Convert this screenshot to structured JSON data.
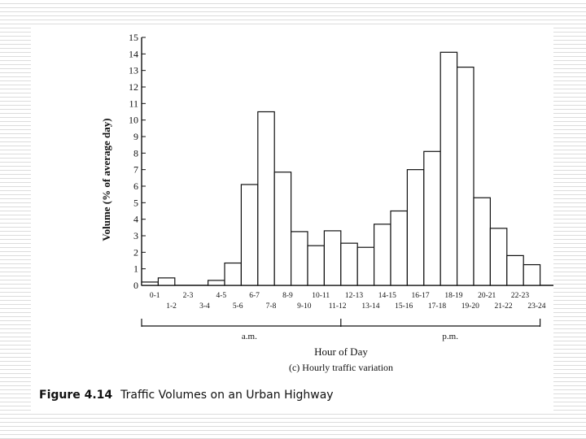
{
  "chart_data": {
    "type": "bar",
    "categories": [
      "0-1",
      "1-2",
      "2-3",
      "3-4",
      "4-5",
      "5-6",
      "6-7",
      "7-8",
      "8-9",
      "9-10",
      "10-11",
      "11-12",
      "12-13",
      "13-14",
      "14-15",
      "15-16",
      "16-17",
      "17-18",
      "18-19",
      "19-20",
      "20-21",
      "21-22",
      "22-23",
      "23-24"
    ],
    "values": [
      0.2,
      0.45,
      0,
      0,
      0.3,
      1.35,
      6.1,
      10.5,
      6.85,
      3.25,
      2.4,
      3.3,
      2.55,
      2.3,
      3.7,
      4.5,
      7.0,
      8.1,
      14.1,
      13.2,
      5.3,
      3.45,
      1.8,
      1.25
    ],
    "ylabel": "Volume (% of average day)",
    "xlabel": "Hour of Day",
    "subtitle": "(c) Hourly traffic variation",
    "ylim": [
      0,
      15
    ],
    "yticks": [
      0,
      1,
      2,
      3,
      4,
      5,
      6,
      7,
      8,
      9,
      10,
      11,
      12,
      13,
      14,
      15
    ],
    "period_labels": {
      "am": "a.m.",
      "pm": "p.m."
    },
    "grid": false
  },
  "caption": {
    "figure_number": "Figure 4.14",
    "text": "Traffic Volumes on an Urban Highway"
  }
}
